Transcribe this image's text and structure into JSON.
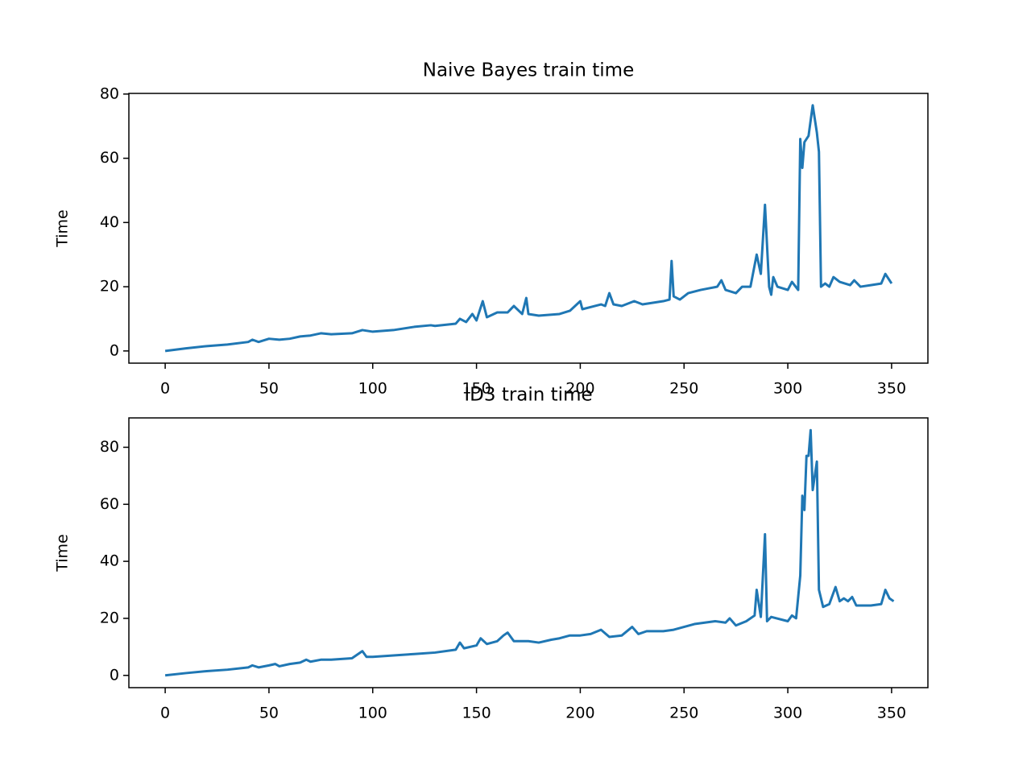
{
  "chart_data": [
    {
      "type": "line",
      "title": "Naive Bayes train time",
      "ylabel": "Time",
      "color": "#1f77b4",
      "xlim": [
        -17.5,
        367.5
      ],
      "xticks": [
        0,
        50,
        100,
        150,
        200,
        250,
        300,
        350
      ],
      "ylim": [
        -3.8,
        80.2
      ],
      "yticks": [
        0,
        20,
        40,
        60,
        80
      ],
      "x": [
        0,
        10,
        20,
        30,
        40,
        42,
        45,
        50,
        55,
        60,
        65,
        70,
        75,
        80,
        90,
        95,
        100,
        110,
        120,
        128,
        130,
        140,
        142,
        145,
        148,
        150,
        153,
        155,
        160,
        165,
        168,
        172,
        174,
        175,
        180,
        190,
        195,
        200,
        201,
        210,
        212,
        214,
        216,
        220,
        224,
        226,
        230,
        240,
        243,
        244,
        245,
        248,
        252,
        258,
        262,
        266,
        268,
        270,
        275,
        278,
        282,
        285,
        287,
        289,
        291,
        292,
        293,
        295,
        300,
        302,
        305,
        306,
        307,
        308,
        310,
        312,
        314,
        315,
        316,
        318,
        320,
        322,
        325,
        330,
        332,
        335,
        340,
        345,
        347,
        349,
        350
      ],
      "values": [
        0,
        0.8,
        1.5,
        2,
        2.8,
        3.5,
        2.8,
        3.8,
        3.5,
        3.8,
        4.5,
        4.8,
        5.5,
        5.2,
        5.5,
        6.5,
        6,
        6.5,
        7.5,
        8,
        7.8,
        8.5,
        10,
        9,
        11.5,
        9.5,
        15.5,
        10.5,
        12,
        12,
        14,
        11.5,
        16.5,
        11.5,
        11,
        11.5,
        12.5,
        15.5,
        13,
        14.5,
        14,
        18,
        14.5,
        14,
        15,
        15.5,
        14.5,
        15.5,
        16,
        28,
        17,
        16,
        18,
        19,
        19.5,
        20,
        22,
        19,
        18,
        20,
        20,
        30,
        24,
        45.5,
        20,
        17.5,
        23,
        20,
        19,
        21.5,
        19,
        66,
        57,
        65,
        67,
        76.5,
        68,
        62,
        20,
        21,
        20,
        23,
        21.5,
        20.5,
        22,
        20,
        20.5,
        21,
        24,
        22,
        21
      ]
    },
    {
      "type": "line",
      "title": "ID3 train time",
      "ylabel": "Time",
      "color": "#1f77b4",
      "xlim": [
        -17.5,
        367.5
      ],
      "xticks": [
        0,
        50,
        100,
        150,
        200,
        250,
        300,
        350
      ],
      "ylim": [
        -4.3,
        90.3
      ],
      "yticks": [
        0,
        20,
        40,
        60,
        80
      ],
      "x": [
        0,
        10,
        20,
        30,
        40,
        42,
        45,
        50,
        53,
        55,
        60,
        65,
        68,
        70,
        75,
        80,
        90,
        95,
        97,
        100,
        110,
        120,
        130,
        140,
        142,
        144,
        150,
        152,
        155,
        160,
        163,
        165,
        168,
        175,
        180,
        186,
        190,
        195,
        200,
        205,
        210,
        214,
        220,
        225,
        228,
        232,
        236,
        240,
        245,
        250,
        255,
        260,
        265,
        270,
        272,
        275,
        280,
        284,
        285,
        287,
        289,
        290,
        292,
        300,
        302,
        304,
        306,
        307,
        308,
        309,
        310,
        311,
        312,
        314,
        315,
        317,
        320,
        323,
        325,
        327,
        329,
        331,
        333,
        340,
        345,
        347,
        349,
        351
      ],
      "values": [
        0,
        0.8,
        1.5,
        2,
        2.8,
        3.5,
        2.8,
        3.5,
        4,
        3.2,
        4,
        4.5,
        5.5,
        4.8,
        5.5,
        5.5,
        6,
        8.5,
        6.5,
        6.5,
        7,
        7.5,
        8,
        9,
        11.5,
        9.5,
        10.5,
        13,
        11,
        12,
        14,
        15,
        12,
        12,
        11.5,
        12.5,
        13,
        14,
        14,
        14.5,
        16,
        13.5,
        14,
        17,
        14.5,
        15.5,
        15.5,
        15.5,
        16,
        17,
        18,
        18.5,
        19,
        18.5,
        20,
        17.5,
        19,
        21,
        30,
        20.5,
        49.5,
        19,
        20.5,
        19,
        21,
        20,
        35,
        63,
        58,
        77,
        77,
        86,
        65,
        75,
        30,
        24,
        25,
        31,
        26,
        27,
        26,
        27.5,
        24.5,
        24.5,
        25,
        30,
        27,
        26
      ]
    }
  ]
}
